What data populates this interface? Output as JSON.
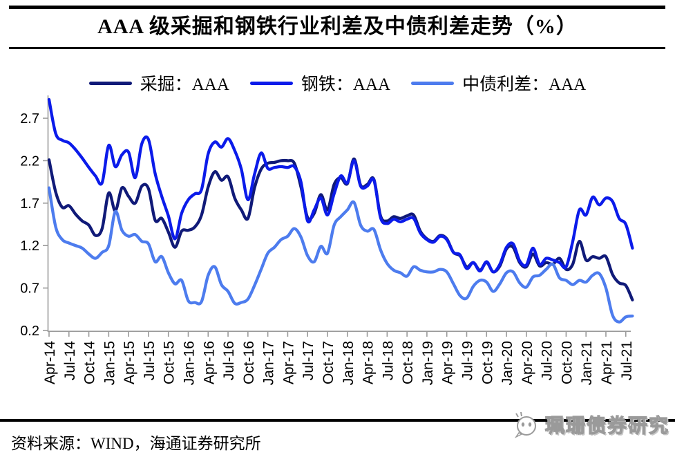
{
  "header": {
    "title": "AAA 级采掘和钢铁行业利差及中债利差走势（%）"
  },
  "legend": [
    {
      "label": "采掘：AAA",
      "color": "#101a78"
    },
    {
      "label": "钢铁：AAA",
      "color": "#0b1bea"
    },
    {
      "label": "中债利差：AAA",
      "color": "#4d7cee"
    }
  ],
  "footer": {
    "source": "资料来源：WIND，海通证券研究所",
    "watermark": "珮珊债券研究"
  },
  "chart_data": {
    "type": "line",
    "title": "AAA 级采掘和钢铁行业利差及中债利差走势（%）",
    "x_frequency": "monthly",
    "x_start": "Apr-14",
    "x_end": "Aug-21",
    "x_tick_labels": [
      "Apr-14",
      "Jul-14",
      "Oct-14",
      "Jan-15",
      "Apr-15",
      "Jul-15",
      "Oct-15",
      "Jan-16",
      "Apr-16",
      "Jul-16",
      "Oct-16",
      "Jan-17",
      "Apr-17",
      "Jul-17",
      "Oct-17",
      "Jan-18",
      "Apr-18",
      "Jul-18",
      "Oct-18",
      "Jan-19",
      "Apr-19",
      "Jul-19",
      "Oct-19",
      "Jan-20",
      "Apr-20",
      "Jul-20",
      "Oct-20",
      "Jan-21",
      "Apr-21",
      "Jul-21"
    ],
    "yticks": [
      0.2,
      0.7,
      1.2,
      1.7,
      2.2,
      2.7
    ],
    "ylim": [
      0.2,
      2.95
    ],
    "grid": false,
    "legend_position": "top",
    "axis_color": "#9a9a9a",
    "series": [
      {
        "id": "mining",
        "name": "采掘：AAA",
        "color": "#101a78",
        "values": [
          2.21,
          1.83,
          1.65,
          1.67,
          1.57,
          1.49,
          1.44,
          1.32,
          1.4,
          1.82,
          1.61,
          1.88,
          1.78,
          1.7,
          1.9,
          1.87,
          1.5,
          1.52,
          1.36,
          1.18,
          1.37,
          1.38,
          1.42,
          1.56,
          1.89,
          2.07,
          1.97,
          2.01,
          1.76,
          1.62,
          1.52,
          1.88,
          2.1,
          2.17,
          2.18,
          2.2,
          2.2,
          2.17,
          1.89,
          1.53,
          1.58,
          1.8,
          1.62,
          1.92,
          2.0,
          1.93,
          2.22,
          1.91,
          1.92,
          1.98,
          1.55,
          1.49,
          1.54,
          1.52,
          1.55,
          1.56,
          1.37,
          1.28,
          1.25,
          1.32,
          1.28,
          1.12,
          1.08,
          0.95,
          1.0,
          0.91,
          1.0,
          0.89,
          0.96,
          1.16,
          1.18,
          1.0,
          0.95,
          1.1,
          0.96,
          1.0,
          0.98,
          1.05,
          0.92,
          0.98,
          1.25,
          1.03,
          1.07,
          1.05,
          1.07,
          0.86,
          0.76,
          0.73,
          0.56
        ]
      },
      {
        "id": "steel",
        "name": "钢铁：AAA",
        "color": "#0b1bea",
        "values": [
          2.92,
          2.52,
          2.44,
          2.41,
          2.33,
          2.23,
          2.12,
          2.02,
          1.94,
          2.38,
          2.13,
          2.27,
          2.3,
          2.0,
          2.4,
          2.45,
          2.05,
          1.78,
          1.55,
          1.28,
          1.58,
          1.74,
          1.81,
          1.86,
          2.28,
          2.42,
          2.36,
          2.46,
          2.32,
          2.1,
          1.74,
          2.04,
          2.29,
          2.11,
          2.12,
          2.13,
          2.12,
          2.13,
          1.95,
          1.49,
          1.62,
          1.76,
          1.56,
          1.81,
          2.02,
          1.94,
          2.2,
          1.9,
          1.9,
          1.97,
          1.53,
          1.46,
          1.51,
          1.48,
          1.51,
          1.52,
          1.35,
          1.27,
          1.24,
          1.31,
          1.27,
          1.12,
          1.09,
          0.93,
          1.0,
          0.9,
          1.01,
          0.89,
          0.98,
          1.18,
          1.22,
          1.02,
          0.97,
          1.17,
          0.98,
          1.05,
          1.03,
          1.0,
          0.95,
          1.25,
          1.62,
          1.56,
          1.77,
          1.68,
          1.76,
          1.72,
          1.52,
          1.45,
          1.17
        ]
      },
      {
        "id": "chinabond",
        "name": "中债利差：AAA",
        "color": "#4d7cee",
        "values": [
          1.88,
          1.42,
          1.27,
          1.23,
          1.2,
          1.17,
          1.1,
          1.05,
          1.12,
          1.2,
          1.6,
          1.38,
          1.31,
          1.33,
          1.25,
          1.22,
          1.01,
          1.07,
          0.88,
          0.75,
          0.79,
          0.55,
          0.53,
          0.54,
          0.85,
          0.95,
          0.74,
          0.66,
          0.52,
          0.53,
          0.57,
          0.73,
          0.92,
          1.11,
          1.18,
          1.27,
          1.31,
          1.4,
          1.3,
          1.08,
          1.01,
          1.19,
          1.11,
          1.44,
          1.54,
          1.62,
          1.71,
          1.44,
          1.37,
          1.39,
          1.15,
          0.99,
          0.91,
          0.88,
          0.84,
          0.95,
          0.91,
          0.89,
          0.89,
          0.92,
          0.89,
          0.75,
          0.61,
          0.58,
          0.72,
          0.79,
          0.77,
          0.66,
          0.75,
          0.88,
          0.89,
          0.76,
          0.71,
          0.83,
          0.85,
          0.92,
          0.98,
          0.82,
          0.79,
          0.74,
          0.79,
          0.77,
          0.85,
          0.87,
          0.7,
          0.38,
          0.3,
          0.36,
          0.37
        ]
      }
    ]
  }
}
